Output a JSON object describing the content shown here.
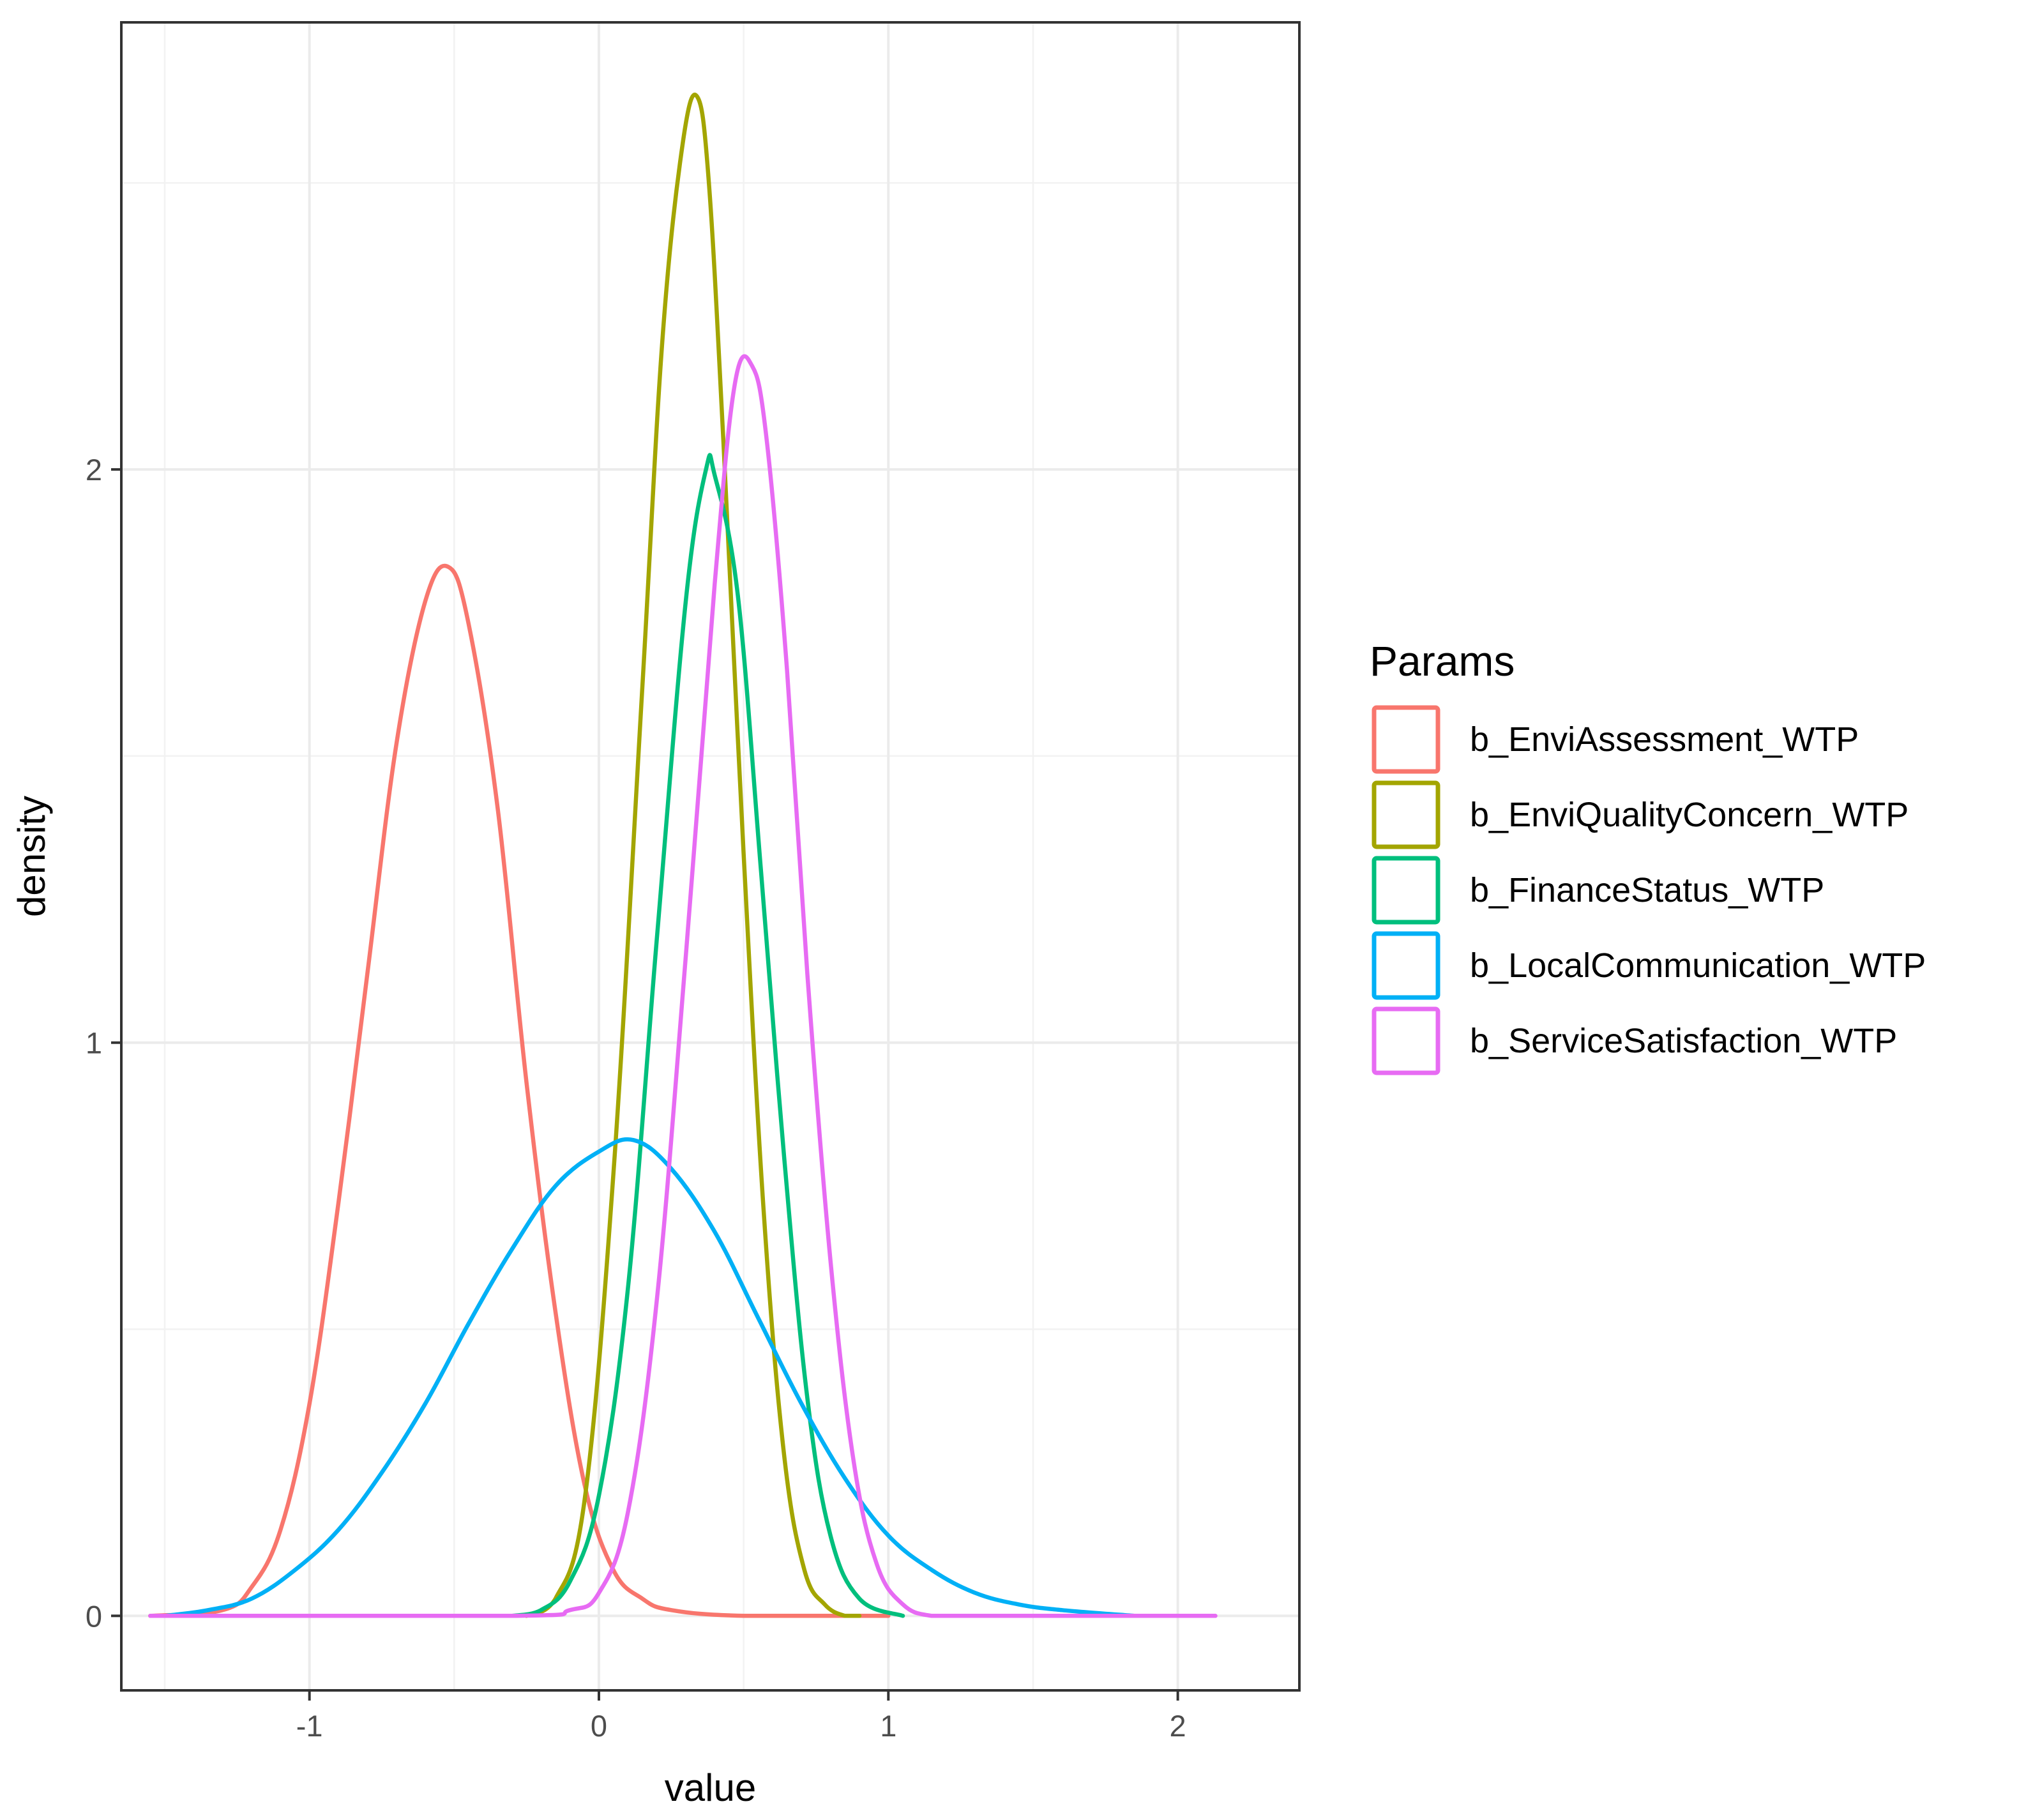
{
  "chart_data": {
    "type": "line",
    "title": "",
    "xlabel": "value",
    "ylabel": "density",
    "xlim": [
      -1.65,
      2.42
    ],
    "ylim": [
      -0.13,
      2.78
    ],
    "x_ticks": [
      -1,
      0,
      1,
      2
    ],
    "y_ticks": [
      0,
      1,
      2
    ],
    "x_tick_labels": [
      "-1",
      "0",
      "1",
      "2"
    ],
    "y_tick_labels": [
      "0",
      "1",
      "2"
    ],
    "grid": true,
    "legend": {
      "title": "Params",
      "position": "right"
    },
    "series": [
      {
        "name": "b_EnviAssessment_WTP",
        "color": "#F8766D",
        "x": [
          -1.55,
          -1.3,
          -1.2,
          -1.1,
          -1.0,
          -0.9,
          -0.8,
          -0.7,
          -0.6,
          -0.52,
          -0.45,
          -0.35,
          -0.25,
          -0.15,
          -0.05,
          0.05,
          0.15,
          0.25,
          0.5,
          1.0
        ],
        "y": [
          0.0,
          0.01,
          0.05,
          0.15,
          0.37,
          0.72,
          1.12,
          1.52,
          1.77,
          1.83,
          1.73,
          1.41,
          0.93,
          0.53,
          0.23,
          0.08,
          0.03,
          0.01,
          0.0,
          0.0
        ]
      },
      {
        "name": "b_EnviQualityConcern_WTP",
        "color": "#A3A500",
        "x": [
          -0.25,
          -0.15,
          -0.05,
          0.05,
          0.15,
          0.22,
          0.29,
          0.34,
          0.38,
          0.43,
          0.5,
          0.57,
          0.64,
          0.71,
          0.78,
          0.85,
          0.9
        ],
        "y": [
          0.0,
          0.03,
          0.2,
          0.77,
          1.62,
          2.23,
          2.57,
          2.65,
          2.5,
          2.05,
          1.33,
          0.7,
          0.28,
          0.08,
          0.02,
          0.0,
          0.0
        ]
      },
      {
        "name": "b_FinanceStatus_WTP",
        "color": "#00BF7D",
        "x": [
          -0.3,
          -0.2,
          -0.1,
          0.0,
          0.1,
          0.2,
          0.3,
          0.37,
          0.4,
          0.48,
          0.56,
          0.64,
          0.72,
          0.8,
          0.9,
          1.05
        ],
        "y": [
          0.0,
          0.01,
          0.06,
          0.21,
          0.57,
          1.18,
          1.77,
          2.0,
          1.99,
          1.78,
          1.3,
          0.8,
          0.38,
          0.14,
          0.03,
          0.0
        ]
      },
      {
        "name": "b_LocalCommunication_WTP",
        "color": "#00B0F6",
        "x": [
          -1.5,
          -1.35,
          -1.2,
          -1.05,
          -0.9,
          -0.75,
          -0.6,
          -0.45,
          -0.3,
          -0.15,
          0.0,
          0.12,
          0.25,
          0.4,
          0.55,
          0.7,
          0.85,
          1.0,
          1.15,
          1.3,
          1.45,
          1.6,
          1.85
        ],
        "y": [
          0.0,
          0.01,
          0.03,
          0.08,
          0.15,
          0.25,
          0.37,
          0.51,
          0.64,
          0.75,
          0.81,
          0.83,
          0.78,
          0.67,
          0.52,
          0.37,
          0.24,
          0.14,
          0.08,
          0.04,
          0.02,
          0.01,
          0.0
        ]
      },
      {
        "name": "b_ServiceSatisfaction_WTP",
        "color": "#E76BF3",
        "x": [
          -1.55,
          -0.3,
          -0.1,
          0.0,
          0.1,
          0.2,
          0.3,
          0.4,
          0.47,
          0.53,
          0.58,
          0.65,
          0.72,
          0.8,
          0.88,
          0.96,
          1.05,
          1.15,
          1.3,
          2.13
        ],
        "y": [
          0.0,
          0.0,
          0.01,
          0.04,
          0.18,
          0.55,
          1.15,
          1.8,
          2.15,
          2.18,
          2.05,
          1.65,
          1.12,
          0.62,
          0.27,
          0.09,
          0.02,
          0.0,
          0.0,
          0.0
        ]
      }
    ]
  }
}
